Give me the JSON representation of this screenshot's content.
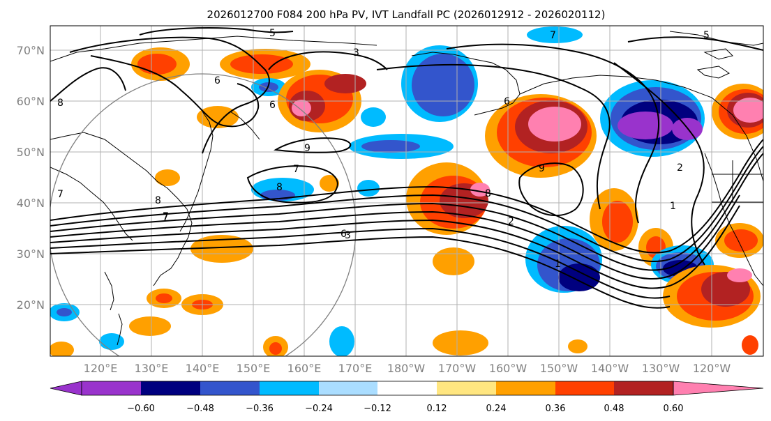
{
  "title": "2026012700 F084 200 hPa PV, IVT Landfall PC (2026012912 - 2026020112)",
  "map": {
    "lat_labels": [
      "70°N",
      "60°N",
      "50°N",
      "40°N",
      "30°N",
      "20°N"
    ],
    "lon_labels": [
      "120°E",
      "130°E",
      "140°E",
      "150°E",
      "160°E",
      "170°E",
      "180°W",
      "170°W",
      "160°W",
      "150°W",
      "140°W",
      "130°W",
      "120°W"
    ],
    "contour_labels": [
      "5",
      "7",
      "5",
      "3",
      "6",
      "6",
      "6",
      "8",
      "9",
      "7",
      "8",
      "7",
      "8",
      "7",
      "9",
      "8",
      "2",
      "1",
      "6",
      "3",
      "2",
      "1",
      "7"
    ]
  },
  "colorbar": {
    "colors": [
      "#9933cc",
      "#00007f",
      "#3355cc",
      "#00bbff",
      "#aaddff",
      "#ffffff",
      "#ffe680",
      "#ffa000",
      "#ff4000",
      "#b22222",
      "#ff80b0"
    ],
    "ticks": [
      "−0.60",
      "−0.48",
      "−0.36",
      "−0.24",
      "−0.12",
      "0.12",
      "0.24",
      "0.36",
      "0.48",
      "0.60"
    ]
  }
}
